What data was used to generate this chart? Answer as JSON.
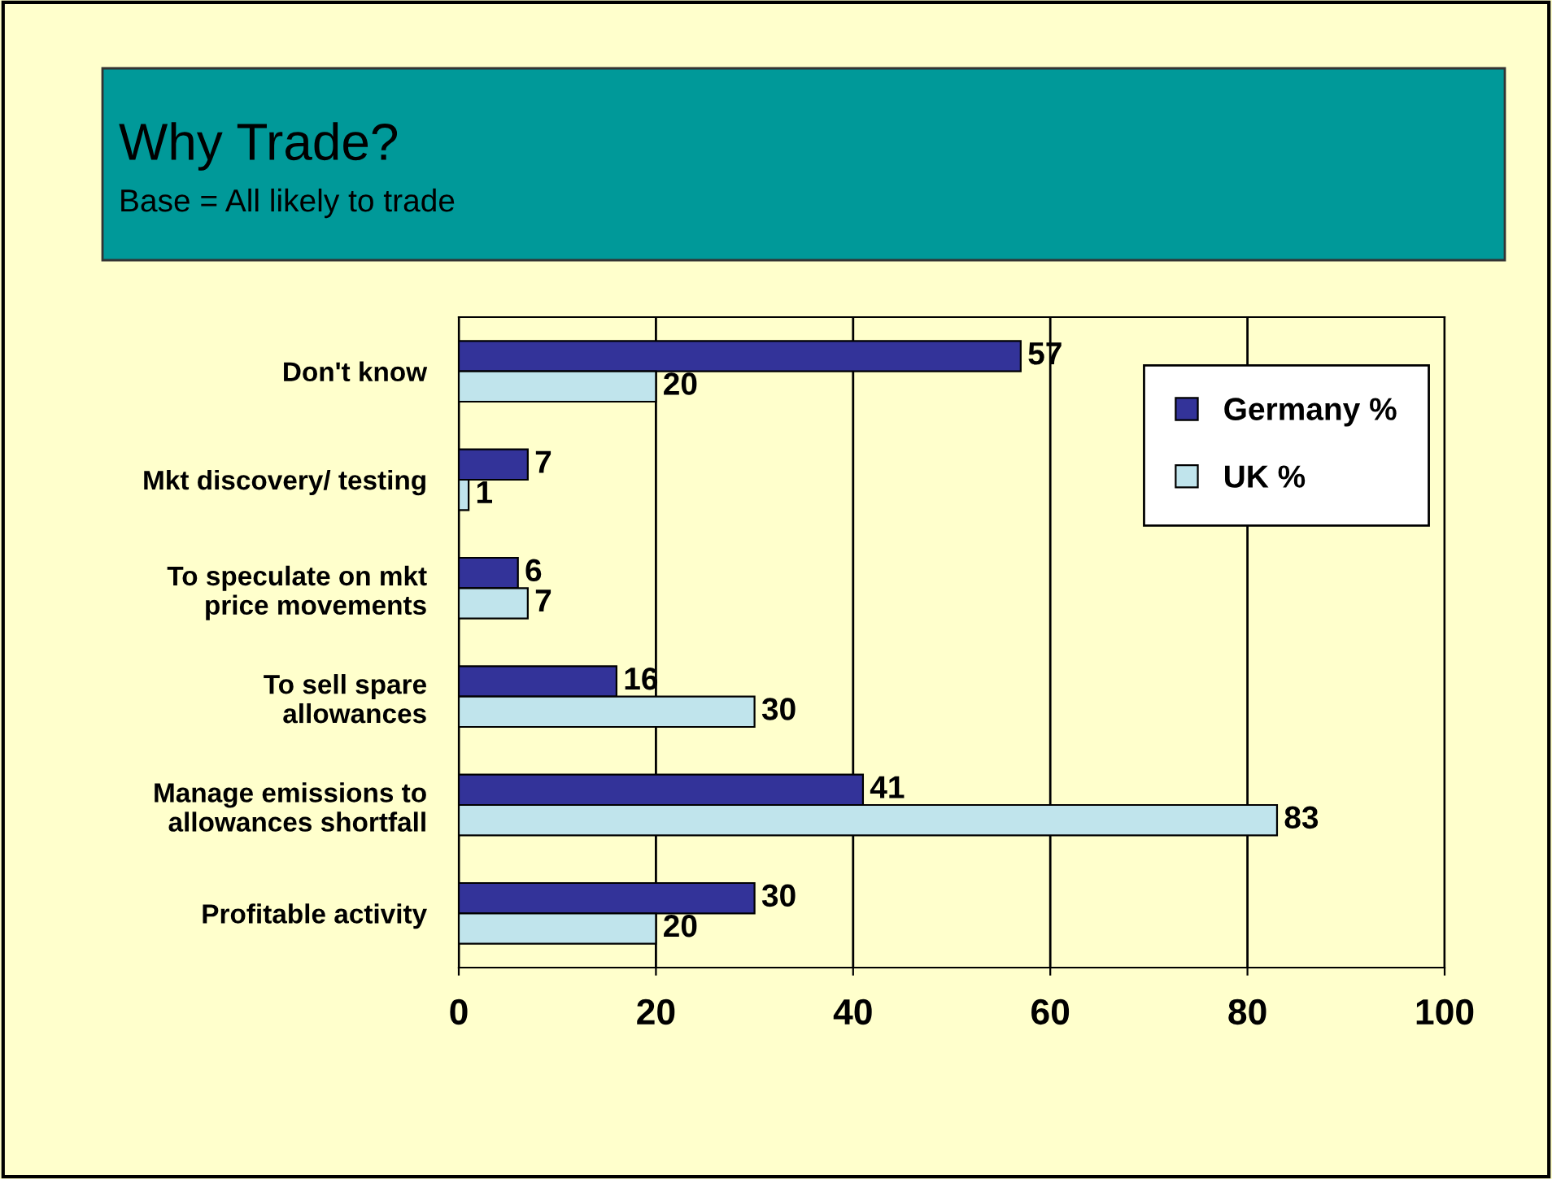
{
  "chart_data": {
    "type": "bar",
    "orientation": "horizontal",
    "title": "Why Trade?",
    "subtitle": "Base = All likely to trade",
    "categories": [
      "Don't know",
      "Mkt discovery/ testing",
      "To speculate on mkt\nprice movements",
      "To sell spare\nallowances",
      "Manage emissions to\nallowances shortfall",
      "Profitable activity"
    ],
    "series": [
      {
        "name": "Germany %",
        "color": "#333399",
        "values": [
          57,
          7,
          6,
          16,
          41,
          30
        ]
      },
      {
        "name": "UK %",
        "color": "#c0e4ec",
        "values": [
          20,
          1,
          7,
          30,
          83,
          20
        ]
      }
    ],
    "xlim": [
      0,
      100
    ],
    "xticks": [
      0,
      20,
      40,
      60,
      80,
      100
    ],
    "grid": "x",
    "legend": "top right",
    "data_labels": true
  }
}
